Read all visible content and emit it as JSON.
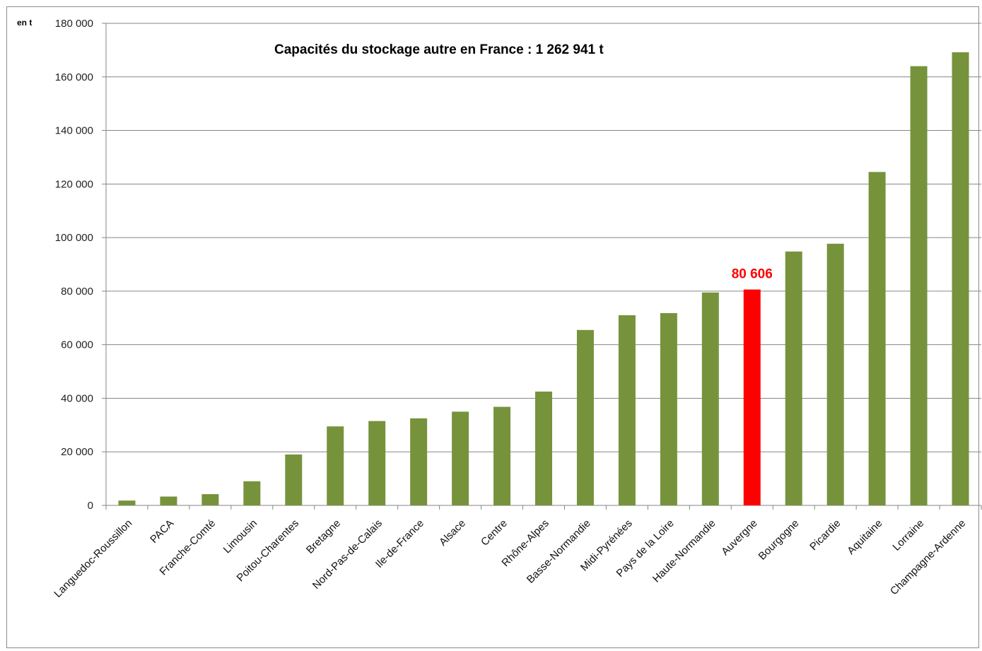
{
  "chart_data": {
    "type": "bar",
    "title": "Capacités du stockage autre en France : 1 262 941 t",
    "ylabel": "en t",
    "xlabel": "",
    "ylim": [
      0,
      180000
    ],
    "yticks": [
      0,
      20000,
      40000,
      60000,
      80000,
      100000,
      120000,
      140000,
      160000,
      180000
    ],
    "ytick_labels": [
      "0",
      "20 000",
      "40 000",
      "60 000",
      "80 000",
      "100 000",
      "120 000",
      "140 000",
      "160 000",
      "180 000"
    ],
    "grid": true,
    "categories": [
      "Languedoc-Roussillon",
      "PACA",
      "Franche-Comté",
      "Limousin",
      "Poitou-Charentes",
      "Bretagne",
      "Nord-Pas-de-Calais",
      "Ile-de-France",
      "Alsace",
      "Centre",
      "Rhône-Alpes",
      "Basse-Normandie",
      "Midi-Pyrénées",
      "Pays de la Loire",
      "Haute-Normandie",
      "Auvergne",
      "Bourgogne",
      "Picardie",
      "Aquitaine",
      "Lorraine",
      "Champagne-Ardenne"
    ],
    "values": [
      1800,
      3300,
      4200,
      9000,
      19000,
      29500,
      31500,
      32500,
      35000,
      36800,
      42500,
      65500,
      71000,
      71800,
      79500,
      80606,
      94800,
      97700,
      124500,
      164000,
      169200
    ],
    "highlight": {
      "category": "Auvergne",
      "label": "80 606"
    },
    "colors": {
      "bar": "#76933c",
      "highlight": "#ff0000",
      "grid": "#868686"
    }
  }
}
